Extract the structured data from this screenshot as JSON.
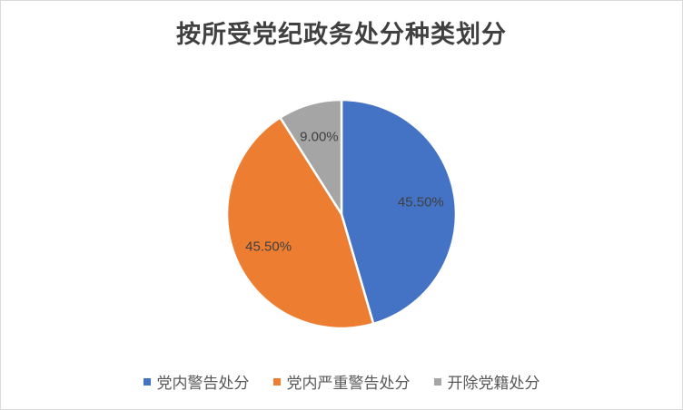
{
  "chart_data": {
    "type": "pie",
    "title": "按所受党纪政务处分种类划分",
    "categories": [
      "党内警告处分",
      "党内严重警告处分",
      "开除党籍处分"
    ],
    "values": [
      45.5,
      45.5,
      9.0
    ],
    "data_labels": [
      "45.50%",
      "45.50%",
      "9.00%"
    ],
    "colors": [
      "#4472C4",
      "#ED7D31",
      "#A5A5A5"
    ],
    "legend_position": "bottom"
  }
}
